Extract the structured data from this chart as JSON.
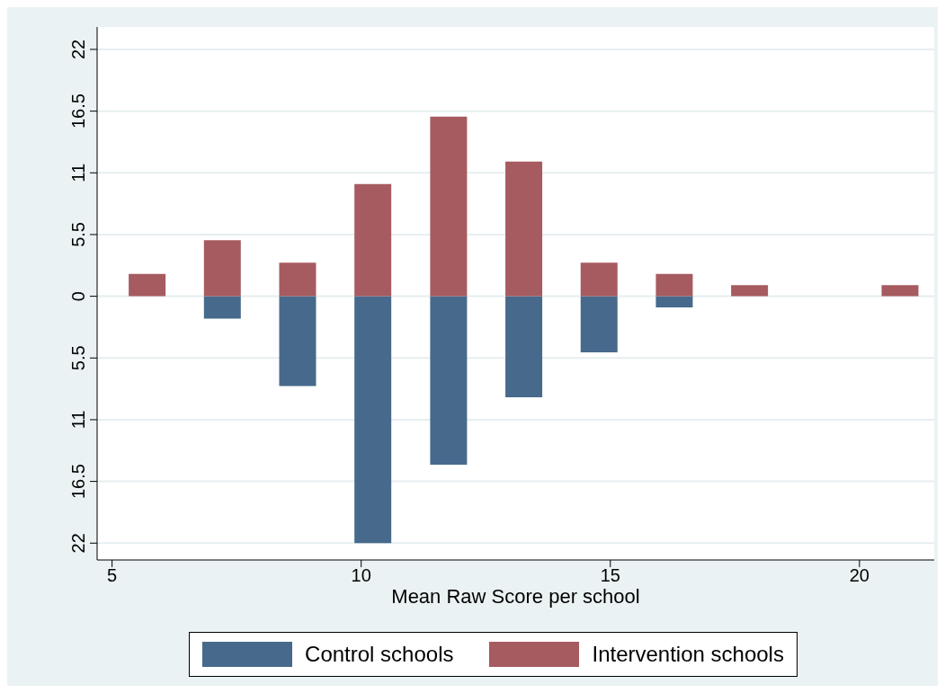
{
  "chart_data": {
    "type": "bar",
    "xlabel": "Mean Raw Score per school",
    "x": [
      5.71,
      7.22,
      8.73,
      10.24,
      11.76,
      13.27,
      14.78,
      16.29,
      17.8,
      20.82
    ],
    "series": [
      {
        "name": "Control schools",
        "color": "#476a8c",
        "values": [
          null,
          -2,
          -8,
          -22,
          -15,
          -9,
          -5,
          -1,
          null,
          null
        ]
      },
      {
        "name": "Intervention schools",
        "color": "#a65b60",
        "values": [
          2,
          5,
          3,
          10,
          16,
          12,
          3,
          2,
          1,
          1
        ]
      }
    ],
    "xlim": [
      4.7,
      21.5
    ],
    "xticks": [
      5,
      10,
      15,
      20
    ],
    "ylim": [
      -23.5,
      24
    ],
    "yticks": [
      {
        "value": -22,
        "label": "22"
      },
      {
        "value": -16.5,
        "label": "16.5"
      },
      {
        "value": -11,
        "label": "11"
      },
      {
        "value": -5.5,
        "label": "5.5"
      },
      0,
      5.5,
      11,
      16.5,
      22
    ],
    "grid": "y",
    "legend": "bottom",
    "stacked": true
  }
}
